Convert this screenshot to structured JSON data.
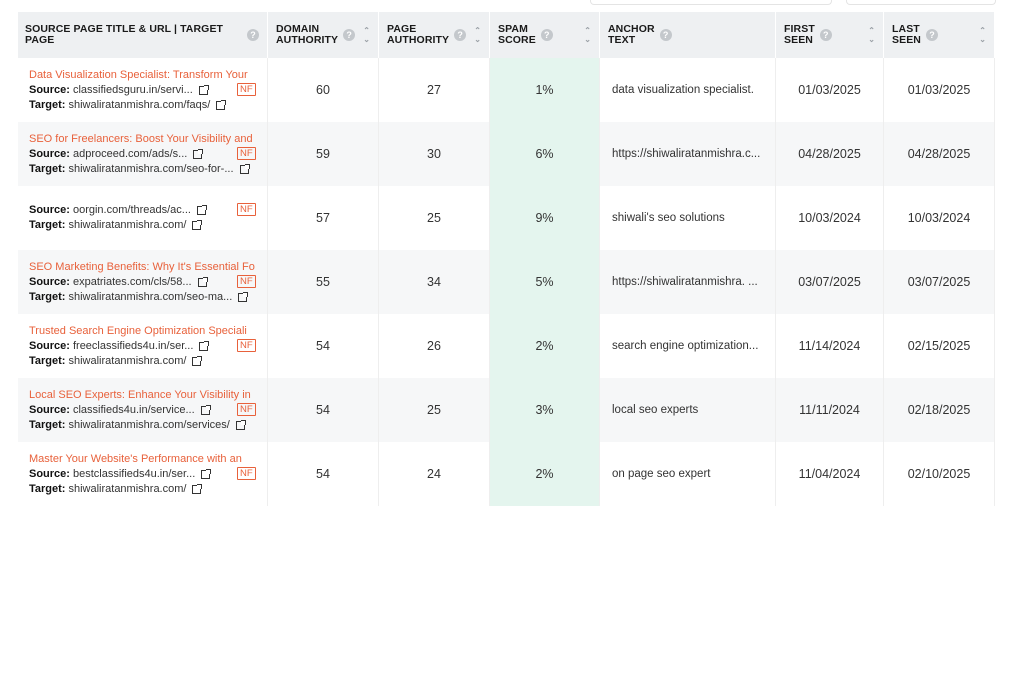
{
  "columns": {
    "source": "SOURCE PAGE TITLE & URL | TARGET PAGE",
    "da_l1": "DOMAIN",
    "da_l2": "AUTHORITY",
    "pa_l1": "PAGE",
    "pa_l2": "AUTHORITY",
    "spam_l1": "SPAM",
    "spam_l2": "SCORE",
    "anchor_l1": "ANCHOR",
    "anchor_l2": "TEXT",
    "first_l1": "FIRST",
    "first_l2": "SEEN",
    "last_l1": "LAST",
    "last_l2": "SEEN"
  },
  "labels": {
    "source": "Source:",
    "target": "Target:",
    "nf": "NF"
  },
  "rows": [
    {
      "title": "Data Visualization Specialist: Transform Your",
      "source": "classifiedsguru.in/servi...",
      "target": "shiwaliratanmishra.com/faqs/",
      "da": "60",
      "pa": "27",
      "spam": "1%",
      "anchor": "data visualization specialist.",
      "first": "01/03/2025",
      "last": "01/03/2025"
    },
    {
      "title": "SEO for Freelancers: Boost Your Visibility and",
      "source": "adproceed.com/ads/s...",
      "target": "shiwaliratanmishra.com/seo-for-...",
      "da": "59",
      "pa": "30",
      "spam": "6%",
      "anchor": "https://shiwaliratanmishra.c...",
      "first": "04/28/2025",
      "last": "04/28/2025"
    },
    {
      "title": "",
      "source": "oorgin.com/threads/ac...",
      "target": "shiwaliratanmishra.com/",
      "da": "57",
      "pa": "25",
      "spam": "9%",
      "anchor": "shiwali's seo solutions",
      "first": "10/03/2024",
      "last": "10/03/2024"
    },
    {
      "title": "SEO Marketing Benefits: Why It's Essential Fo",
      "source": "expatriates.com/cls/58...",
      "target": "shiwaliratanmishra.com/seo-ma...",
      "da": "55",
      "pa": "34",
      "spam": "5%",
      "anchor": "https://shiwaliratanmishra. ...",
      "first": "03/07/2025",
      "last": "03/07/2025"
    },
    {
      "title": "Trusted Search Engine Optimization Speciali",
      "source": "freeclassifieds4u.in/ser...",
      "target": "shiwaliratanmishra.com/",
      "da": "54",
      "pa": "26",
      "spam": "2%",
      "anchor": "search engine optimization...",
      "first": "11/14/2024",
      "last": "02/15/2025"
    },
    {
      "title": "Local SEO Experts: Enhance Your Visibility in",
      "source": "classifieds4u.in/service...",
      "target": "shiwaliratanmishra.com/services/",
      "da": "54",
      "pa": "25",
      "spam": "3%",
      "anchor": "local seo experts",
      "first": "11/11/2024",
      "last": "02/18/2025"
    },
    {
      "title": "Master Your Website's Performance with an",
      "source": "bestclassifieds4u.in/ser...",
      "target": "shiwaliratanmishra.com/",
      "da": "54",
      "pa": "24",
      "spam": "2%",
      "anchor": "on page seo expert",
      "first": "11/04/2024",
      "last": "02/10/2025"
    }
  ],
  "colors": {
    "accent": "#e8613b",
    "spam_bg": "#e4f5ee",
    "header_bg": "#eef0f2"
  },
  "icons": {
    "help": "help-circle-icon",
    "sort": "sort-arrows-icon",
    "external": "external-link-icon"
  }
}
